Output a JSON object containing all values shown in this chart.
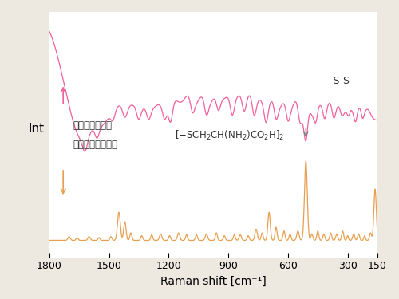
{
  "xlabel": "Raman shift [cm⁻¹]",
  "ylabel": "Int",
  "background_color": "#ede8e0",
  "plot_bg": "#ffffff",
  "ir_color": "#f0609a",
  "raman_color": "#e8a050",
  "ir_label": "赤外スペクトル",
  "raman_label": "ラマンスペクトル",
  "ss_label": "-S-S-",
  "xticks": [
    1800,
    1500,
    1200,
    900,
    600,
    300,
    150
  ]
}
